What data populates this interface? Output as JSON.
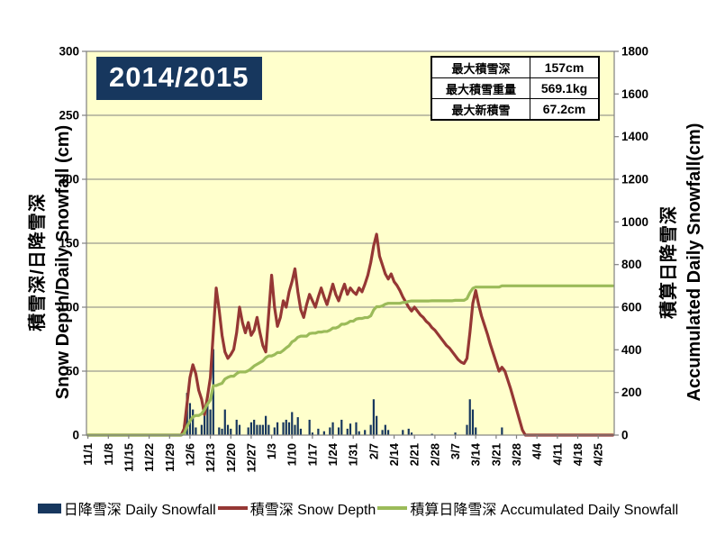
{
  "season_title": "2014/2015",
  "stats_table": {
    "rows": [
      {
        "label": "最大積雪深",
        "value": "157cm"
      },
      {
        "label": "最大積雪重量",
        "value": "569.1kg"
      },
      {
        "label": "最大新積雪",
        "value": "67.2cm"
      }
    ]
  },
  "legend": [
    {
      "label": "日降雪深 Daily Snowfall",
      "swatch": "bar-swatch"
    },
    {
      "label": "積雪深 Snow Depth",
      "swatch": "line-swatch"
    },
    {
      "label": "積算日降雪深 Accumulated Daily Snowfall",
      "swatch": "line-swatch"
    }
  ],
  "colors": {
    "bar": "#17375E",
    "snow_depth_line": "#953734",
    "accumulated_line": "#9BBB59",
    "plot_bg": "#FFFFCC",
    "grid": "#808080",
    "title_bg": "#17375E",
    "axis_text": "#000000"
  },
  "chart_data": {
    "type": "bar",
    "subtype": "bar+line combo, dual axis",
    "title": "2014/2015",
    "x_start": "11/1",
    "num_days": 181,
    "x_tick_step_days": 7,
    "x_tick_labels": [
      "11/1",
      "11/8",
      "11/15",
      "11/22",
      "11/29",
      "12/6",
      "12/13",
      "12/20",
      "12/27",
      "1/3",
      "1/10",
      "1/17",
      "1/24",
      "1/31",
      "2/7",
      "2/14",
      "2/21",
      "2/28",
      "3/7",
      "3/14",
      "3/21",
      "3/28",
      "4/4",
      "4/11",
      "4/18",
      "4/25"
    ],
    "left_axis": {
      "min": 0,
      "max": 300,
      "step": 50,
      "title_lines": [
        "積雪深/日降雪深",
        "Snow Depth/Daily Snowfall (cm)"
      ]
    },
    "right_axis": {
      "min": 0,
      "max": 1800,
      "step": 200,
      "title_lines": [
        "積算日降雪深",
        "Accumulated Daily Snowfall(cm)"
      ]
    },
    "grid": "horizontal only",
    "legend_position": "bottom",
    "series": [
      {
        "name": "日降雪深 Daily Snowfall",
        "type": "bar",
        "axis": "left",
        "color_key": "bar",
        "values": [
          0,
          0,
          0,
          0,
          0,
          0,
          0,
          0,
          0,
          0,
          0,
          0,
          0,
          0,
          0,
          0,
          0,
          0,
          0,
          0,
          0,
          0,
          0,
          0,
          0,
          0,
          0,
          0,
          0,
          0,
          0,
          0,
          0,
          8,
          33,
          25,
          20,
          6,
          0,
          8,
          20,
          25,
          20,
          67.2,
          0,
          6,
          5,
          20,
          8,
          5,
          0,
          12,
          8,
          0,
          0,
          6,
          10,
          12,
          8,
          8,
          8,
          15,
          8,
          0,
          6,
          10,
          0,
          10,
          12,
          10,
          18,
          8,
          14,
          5,
          0,
          0,
          12,
          2,
          0,
          5,
          0,
          3,
          0,
          6,
          10,
          0,
          6,
          12,
          0,
          5,
          9,
          0,
          10,
          3,
          0,
          4,
          0,
          8,
          28,
          15,
          0,
          4,
          8,
          4,
          0,
          0,
          0,
          0,
          4,
          0,
          5,
          2,
          0,
          0,
          0,
          0,
          0,
          0,
          1,
          0,
          0,
          0,
          0,
          0,
          0,
          0,
          2,
          0,
          0,
          0,
          8,
          28,
          20,
          6,
          0,
          0,
          0,
          0,
          0,
          0,
          0,
          0,
          6,
          0,
          0,
          0,
          0,
          0,
          0,
          0,
          0,
          0,
          0,
          0,
          0,
          0,
          0,
          0,
          0,
          0,
          0,
          0,
          0,
          0,
          0,
          0,
          0,
          0,
          0,
          0,
          0,
          0,
          0,
          0,
          0,
          0,
          0,
          0,
          0,
          0,
          0
        ]
      },
      {
        "name": "積雪深 Snow Depth",
        "type": "line",
        "axis": "left",
        "color_key": "snow_depth_line",
        "values": [
          0,
          0,
          0,
          0,
          0,
          0,
          0,
          0,
          0,
          0,
          0,
          0,
          0,
          0,
          0,
          0,
          0,
          0,
          0,
          0,
          0,
          0,
          0,
          0,
          0,
          0,
          0,
          0,
          0,
          0,
          0,
          0,
          0,
          5,
          25,
          45,
          55,
          48,
          35,
          28,
          16,
          30,
          45,
          80,
          115,
          98,
          78,
          65,
          60,
          63,
          67,
          80,
          100,
          88,
          80,
          88,
          78,
          82,
          92,
          80,
          70,
          65,
          95,
          125,
          100,
          85,
          92,
          105,
          100,
          112,
          120,
          130,
          112,
          98,
          92,
          102,
          110,
          105,
          100,
          108,
          115,
          108,
          102,
          110,
          118,
          110,
          105,
          112,
          118,
          110,
          115,
          112,
          110,
          115,
          112,
          118,
          125,
          135,
          148,
          157,
          140,
          133,
          126,
          122,
          126,
          120,
          117,
          113,
          108,
          104,
          100,
          97,
          100,
          97,
          94,
          92,
          89,
          87,
          84,
          82,
          79,
          76,
          73,
          70,
          68,
          65,
          62,
          59,
          57,
          56,
          60,
          80,
          103,
          113,
          102,
          93,
          86,
          79,
          71,
          64,
          57,
          50,
          53,
          50,
          43,
          36,
          28,
          20,
          12,
          4,
          0,
          0,
          0,
          0,
          0,
          0,
          0,
          0,
          0,
          0,
          0,
          0,
          0,
          0,
          0,
          0,
          0,
          0,
          0,
          0,
          0,
          0,
          0,
          0,
          0,
          0,
          0,
          0,
          0,
          0,
          0
        ]
      },
      {
        "name": "積算日降雪深 Accumulated Daily Snowfall",
        "type": "line",
        "axis": "right",
        "color_key": "accumulated_line",
        "derived_from": "cumsum_of_series_0"
      }
    ]
  }
}
